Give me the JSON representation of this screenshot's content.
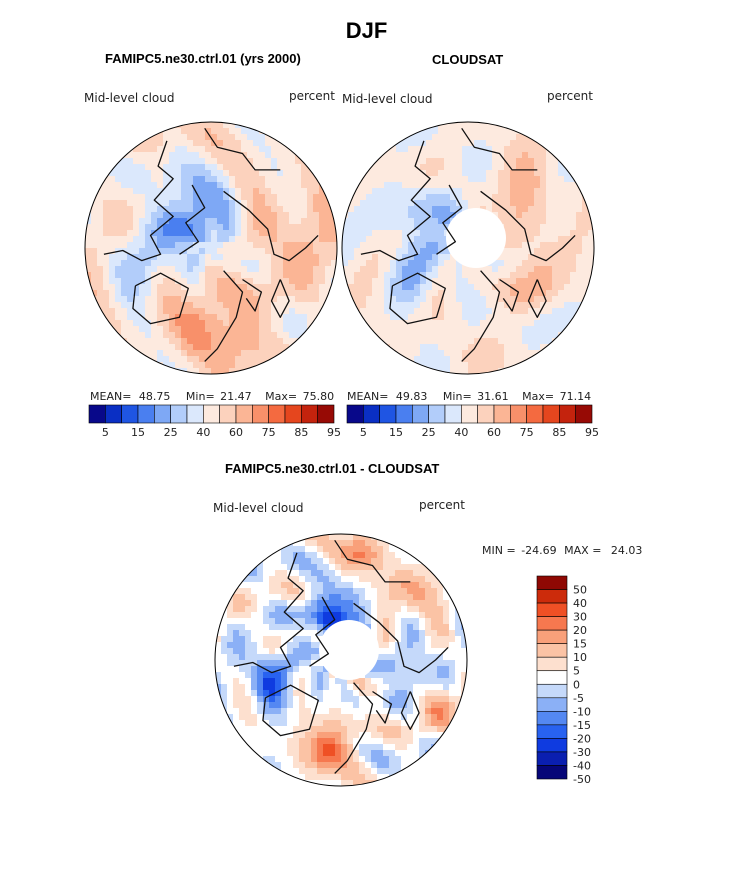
{
  "figure": {
    "title": "DJF",
    "colors": {
      "seq": [
        "#08088a",
        "#0a2fc4",
        "#1f55e3",
        "#4a7ff0",
        "#7ea8f5",
        "#b2cdfa",
        "#dbe8fc",
        "#fdeadf",
        "#fcd2bd",
        "#fbb595",
        "#f8906a",
        "#f46a40",
        "#e5461e",
        "#c4230d",
        "#970a05"
      ],
      "div": [
        "#060678",
        "#0a1fb0",
        "#0f3be0",
        "#2862f0",
        "#5488f2",
        "#8bb0f6",
        "#c5d9fa",
        "#ffffff",
        "#fde0cf",
        "#fbc3a5",
        "#f9a07a",
        "#f6784f",
        "#ef5025",
        "#cc2b0b",
        "#8f0803"
      ],
      "land": "#111111"
    }
  },
  "chart_data": [
    {
      "id": "model",
      "type": "heatmap",
      "projection": "north-polar-stereographic",
      "title": "FAMIPC5.ne30.ctrl.01 (yrs 2000)",
      "left_label": "Mid-level cloud",
      "right_label": "percent",
      "stats": {
        "mean_label": "MEAN=",
        "mean": "48.75",
        "min_label": "Min=",
        "min": "21.47",
        "max_label": "Max=",
        "max": "75.80"
      },
      "colorbar": {
        "levels": [
          5,
          10,
          15,
          20,
          25,
          30,
          35,
          40,
          50,
          60,
          65,
          75,
          80,
          85,
          90,
          95
        ],
        "tick_labels": [
          "5",
          "15",
          "25",
          "40",
          "60",
          "75",
          "85",
          "95"
        ],
        "missing_pole": false
      }
    },
    {
      "id": "obs",
      "type": "heatmap",
      "projection": "north-polar-stereographic",
      "title": "CLOUDSAT",
      "left_label": "Mid-level cloud",
      "right_label": "percent",
      "stats": {
        "mean_label": "MEAN=",
        "mean": "49.83",
        "min_label": "Min=",
        "min": "31.61",
        "max_label": "Max=",
        "max": "71.14"
      },
      "colorbar": {
        "levels": [
          5,
          10,
          15,
          20,
          25,
          30,
          35,
          40,
          50,
          60,
          65,
          75,
          80,
          85,
          90,
          95
        ],
        "tick_labels": [
          "5",
          "15",
          "25",
          "40",
          "60",
          "75",
          "85",
          "95"
        ],
        "missing_pole": true
      }
    },
    {
      "id": "diff",
      "type": "heatmap",
      "projection": "north-polar-stereographic",
      "title": "FAMIPC5.ne30.ctrl.01 - CLOUDSAT",
      "left_label": "Mid-level cloud",
      "right_label": "percent",
      "stats": {
        "min_label": "MIN =",
        "min": "-24.69",
        "max_label": "MAX =",
        "max": "24.03"
      },
      "colorbar": {
        "orientation": "vertical",
        "tick_labels": [
          "50",
          "40",
          "30",
          "20",
          "15",
          "10",
          "5",
          "0",
          "-5",
          "-10",
          "-15",
          "-20",
          "-30",
          "-40",
          "-50"
        ],
        "missing_pole": true
      }
    }
  ]
}
